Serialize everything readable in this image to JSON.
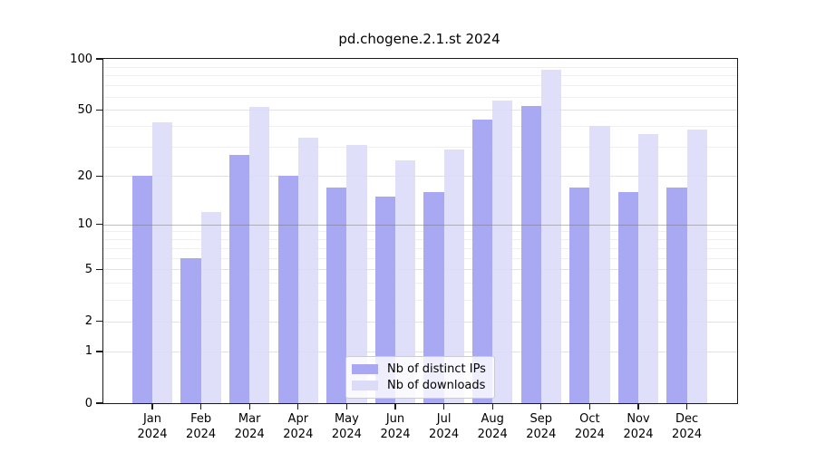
{
  "chart_data": {
    "type": "bar",
    "title": "pd.chogene.2.1.st 2024",
    "categories": [
      "Jan",
      "Feb",
      "Mar",
      "Apr",
      "May",
      "Jun",
      "Jul",
      "Aug",
      "Sep",
      "Oct",
      "Nov",
      "Dec"
    ],
    "category_year": "2024",
    "series": [
      {
        "name": "Nb of distinct IPs",
        "color": "#a9a9f3",
        "values": [
          20,
          6,
          27,
          20,
          17,
          15,
          16,
          44,
          53,
          17,
          16,
          17
        ]
      },
      {
        "name": "Nb of downloads",
        "color": "#dcdcf8",
        "values": [
          42,
          12,
          52,
          34,
          31,
          25,
          29,
          57,
          86,
          40,
          36,
          38
        ]
      }
    ],
    "yaxis": {
      "scale": "log1p",
      "min": 0,
      "max": 100,
      "ticks": [
        0,
        1,
        2,
        5,
        10,
        20,
        50,
        100
      ]
    },
    "minor_gridlines": [
      3,
      4,
      6,
      7,
      8,
      9,
      30,
      40,
      60,
      70,
      80,
      90
    ],
    "emphasized_gridline": 10,
    "grid": true,
    "legend_position": "bottom-center"
  },
  "colors": {
    "background": "#ffffff",
    "frame": "#1a1a1a",
    "text": "#000000",
    "grid_minor": "#efefef",
    "grid_major": "#e2e2e2",
    "grid_emphasized": "#8f8f8f"
  }
}
